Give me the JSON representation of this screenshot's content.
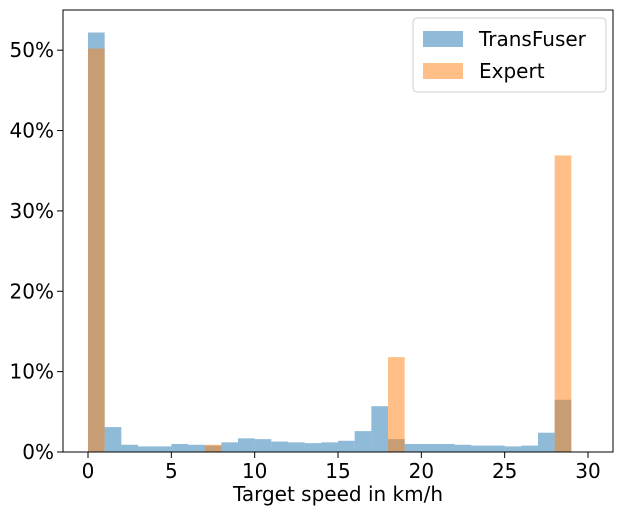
{
  "chart_data": {
    "type": "bar",
    "subtype": "overlapping-histogram",
    "title": "",
    "xlabel": "Target speed in km/h",
    "ylabel": "",
    "xlim": [
      -1.5,
      31.5
    ],
    "ylim": [
      0,
      55
    ],
    "bin_width": 1,
    "bin_starts": [
      0,
      1,
      2,
      3,
      4,
      5,
      6,
      7,
      8,
      9,
      10,
      11,
      12,
      13,
      14,
      15,
      16,
      17,
      18,
      19,
      20,
      21,
      22,
      23,
      24,
      25,
      26,
      27,
      28
    ],
    "x_ticks": [
      0,
      5,
      10,
      15,
      20,
      25,
      30
    ],
    "x_tick_labels": [
      "0",
      "5",
      "10",
      "15",
      "20",
      "25",
      "30"
    ],
    "y_ticks": [
      0,
      10,
      20,
      30,
      40,
      50
    ],
    "y_tick_labels": [
      "0%",
      "10%",
      "20%",
      "30%",
      "40%",
      "50%"
    ],
    "grid": false,
    "legend_position": "top-right",
    "bar_opacity": 0.5,
    "series": [
      {
        "name": "TransFuser",
        "color": "#1f77b4",
        "values": [
          52.2,
          3.1,
          0.9,
          0.7,
          0.7,
          1.0,
          0.9,
          0.8,
          1.2,
          1.7,
          1.6,
          1.3,
          1.2,
          1.1,
          1.2,
          1.4,
          2.6,
          5.7,
          1.6,
          1.0,
          1.0,
          1.0,
          0.9,
          0.8,
          0.8,
          0.7,
          0.8,
          2.4,
          6.5
        ]
      },
      {
        "name": "Expert",
        "color": "#ff7f0e",
        "values": [
          50.2,
          0,
          0,
          0,
          0,
          0,
          0,
          0.9,
          0,
          0,
          0,
          0,
          0,
          0,
          0,
          0,
          0,
          0,
          11.8,
          0,
          0,
          0,
          0,
          0,
          0,
          0,
          0,
          0,
          36.9
        ]
      }
    ]
  }
}
